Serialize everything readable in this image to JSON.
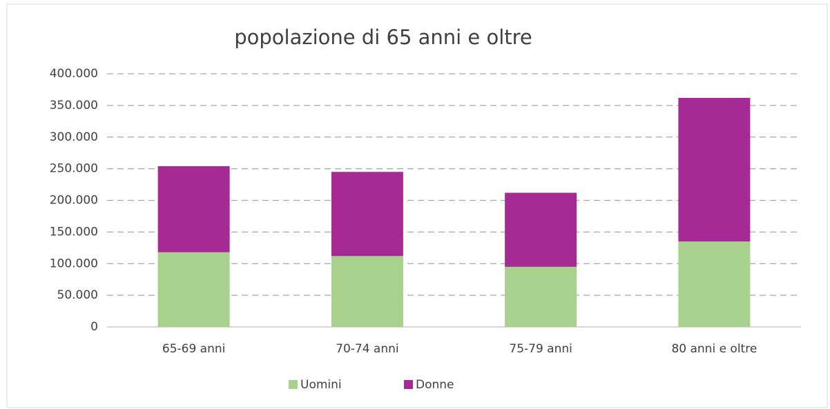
{
  "chart_data": {
    "type": "bar",
    "stacked": true,
    "title": "popolazione di 65 anni e oltre",
    "categories": [
      "65-69 anni",
      "70-74 anni",
      "75-79 anni",
      "80 anni e oltre"
    ],
    "series": [
      {
        "name": "Uomini",
        "color": "#a9d18e",
        "values": [
          118000,
          112000,
          95000,
          135000
        ]
      },
      {
        "name": "Donne",
        "color": "#a52a94",
        "values": [
          136000,
          133000,
          117000,
          227000
        ]
      }
    ],
    "ylim": [
      0,
      400000
    ],
    "yticks": [
      0,
      {
        "value": 50000,
        "label": "50.000"
      },
      {
        "value": 100000,
        "label": "100.000"
      },
      {
        "value": 150000,
        "label": "150.000"
      },
      {
        "value": 200000,
        "label": "200.000"
      },
      {
        "value": 250000,
        "label": "250.000"
      },
      {
        "value": 300000,
        "label": "300.000"
      },
      {
        "value": 350000,
        "label": "350.000"
      },
      {
        "value": 400000,
        "label": "400.000"
      }
    ],
    "grid": true,
    "legend": "bottom"
  }
}
